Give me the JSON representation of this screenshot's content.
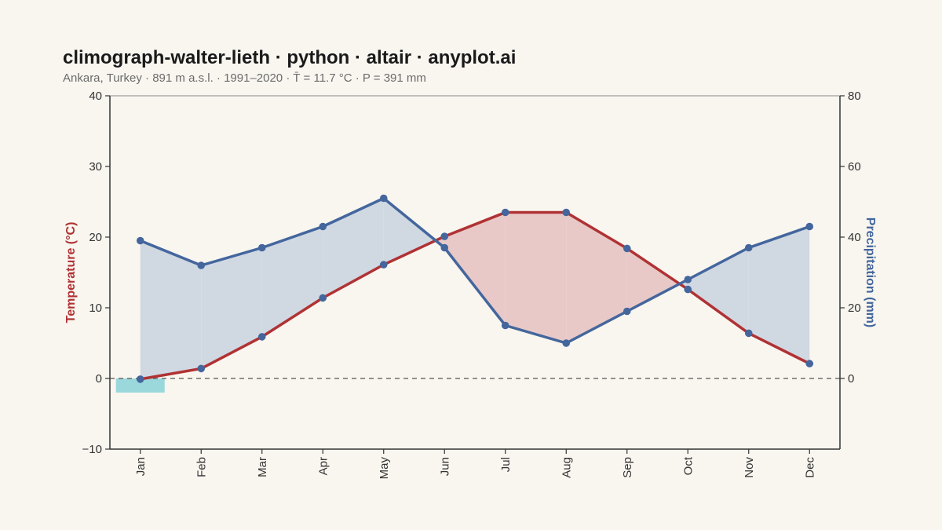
{
  "title": "climograph-walter-lieth · python · altair · anyplot.ai",
  "subtitle": "Ankara, Turkey · 891 m a.s.l. · 1991–2020 · T̄ = 11.7 °C · P = 391 mm",
  "colors": {
    "background": "#f9f6f0",
    "temperature": "#b03234",
    "precipitation": "#44669d",
    "humid_fill": "#d0d8e2",
    "arid_fill": "#e8c9c7",
    "frost_fill": "#9ad8dc"
  },
  "chart_data": {
    "type": "line",
    "categories": [
      "Jan",
      "Feb",
      "Mar",
      "Apr",
      "May",
      "Jun",
      "Jul",
      "Aug",
      "Sep",
      "Oct",
      "Nov",
      "Dec"
    ],
    "series": [
      {
        "axis": "left",
        "values": [
          -0.1,
          1.4,
          5.9,
          11.4,
          16.1,
          20.1,
          23.5,
          23.5,
          18.4,
          12.6,
          6.4,
          2.1
        ]
      },
      {
        "axis": "right",
        "values": [
          39,
          32,
          37,
          43,
          51,
          37,
          15,
          10,
          19,
          28,
          37,
          43
        ]
      }
    ],
    "ylabel_left": "Temperature (°C)",
    "ylabel_right": "Precipitation (mm)",
    "ylim_left": [
      -10,
      40
    ],
    "ylim_right": [
      -20,
      80
    ],
    "yticks_left": [
      "−10",
      "0",
      "10",
      "20",
      "30",
      "40"
    ],
    "yticks_right": [
      "0",
      "20",
      "40",
      "60",
      "80"
    ],
    "frost_months": [
      "Jan"
    ],
    "zero_reference_line": "dashed",
    "grid": false
  }
}
